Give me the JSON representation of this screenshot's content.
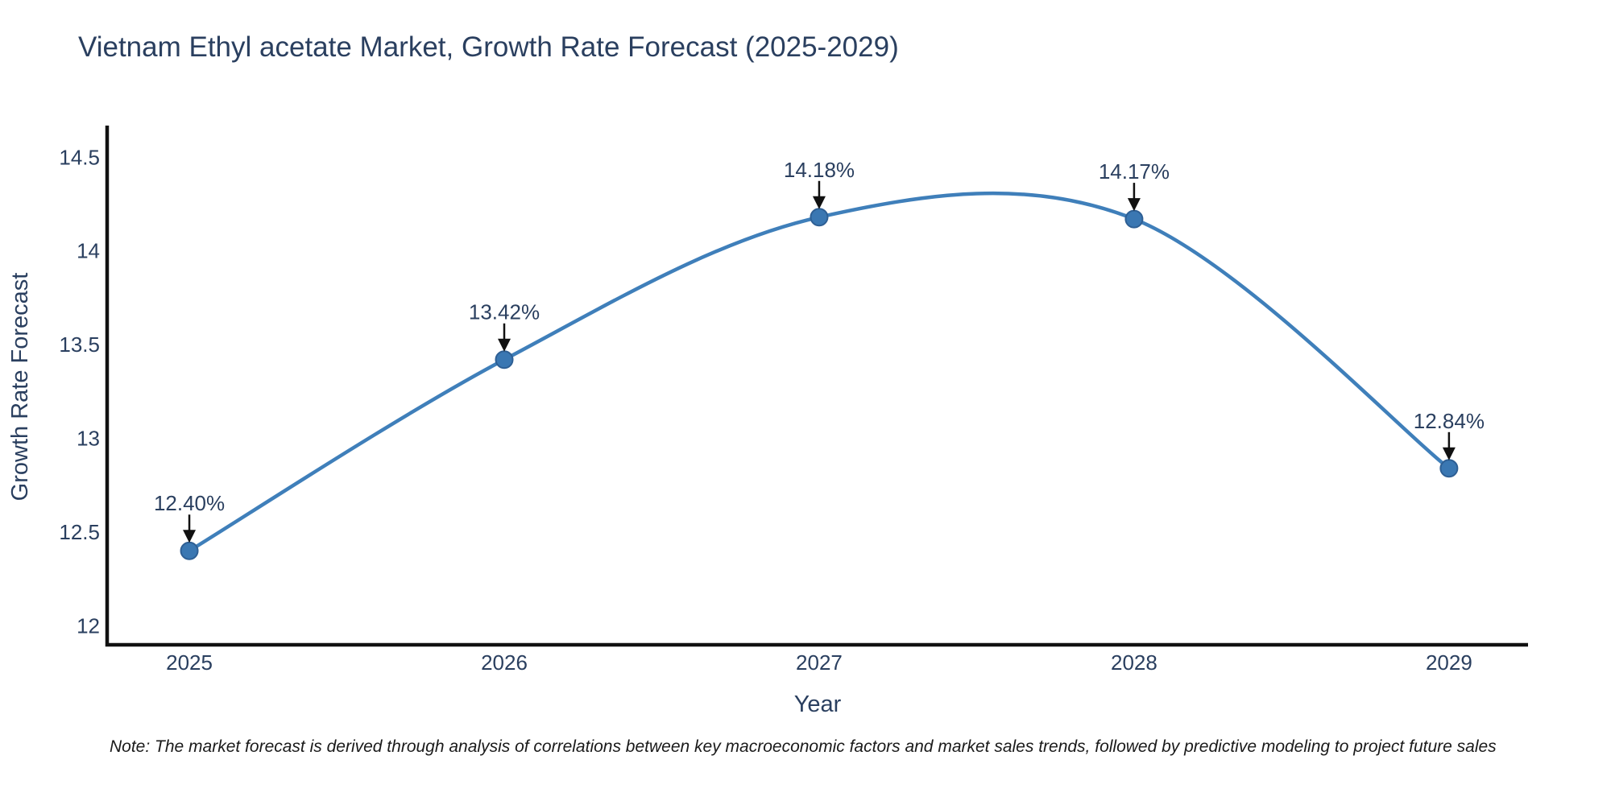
{
  "page": {
    "title": "Vietnam Ethyl acetate Market, Growth Rate Forecast (2025-2029)",
    "note": "Note: The market forecast is derived through analysis of correlations between key macroeconomic factors and market sales trends, followed by predictive modeling to project future sales"
  },
  "chart_data": {
    "type": "line",
    "title": "Vietnam Ethyl acetate Market, Growth Rate Forecast (2025-2029)",
    "xlabel": "Year",
    "ylabel": "Growth Rate Forecast",
    "x": [
      2025,
      2026,
      2027,
      2028,
      2029
    ],
    "series": [
      {
        "name": "Growth Rate Forecast",
        "values": [
          12.4,
          13.42,
          14.18,
          14.17,
          12.84
        ]
      }
    ],
    "point_labels": [
      "12.40%",
      "13.42%",
      "14.18%",
      "14.17%",
      "12.84%"
    ],
    "xticks": [
      "2025",
      "2026",
      "2027",
      "2028",
      "2029"
    ],
    "yticks": [
      12,
      12.5,
      13,
      13.5,
      14,
      14.5
    ],
    "xlim": [
      2024.739,
      2029.251
    ],
    "ylim": [
      11.89,
      14.66
    ],
    "line_shape": "spline",
    "grid": false,
    "legend": false,
    "colors": {
      "line": "#3f7fba",
      "marker": "#3a77b2",
      "marker_edge": "#2e5f94",
      "axis": "#111111",
      "text": "#2a3f5f",
      "arrow": "#111111"
    }
  }
}
